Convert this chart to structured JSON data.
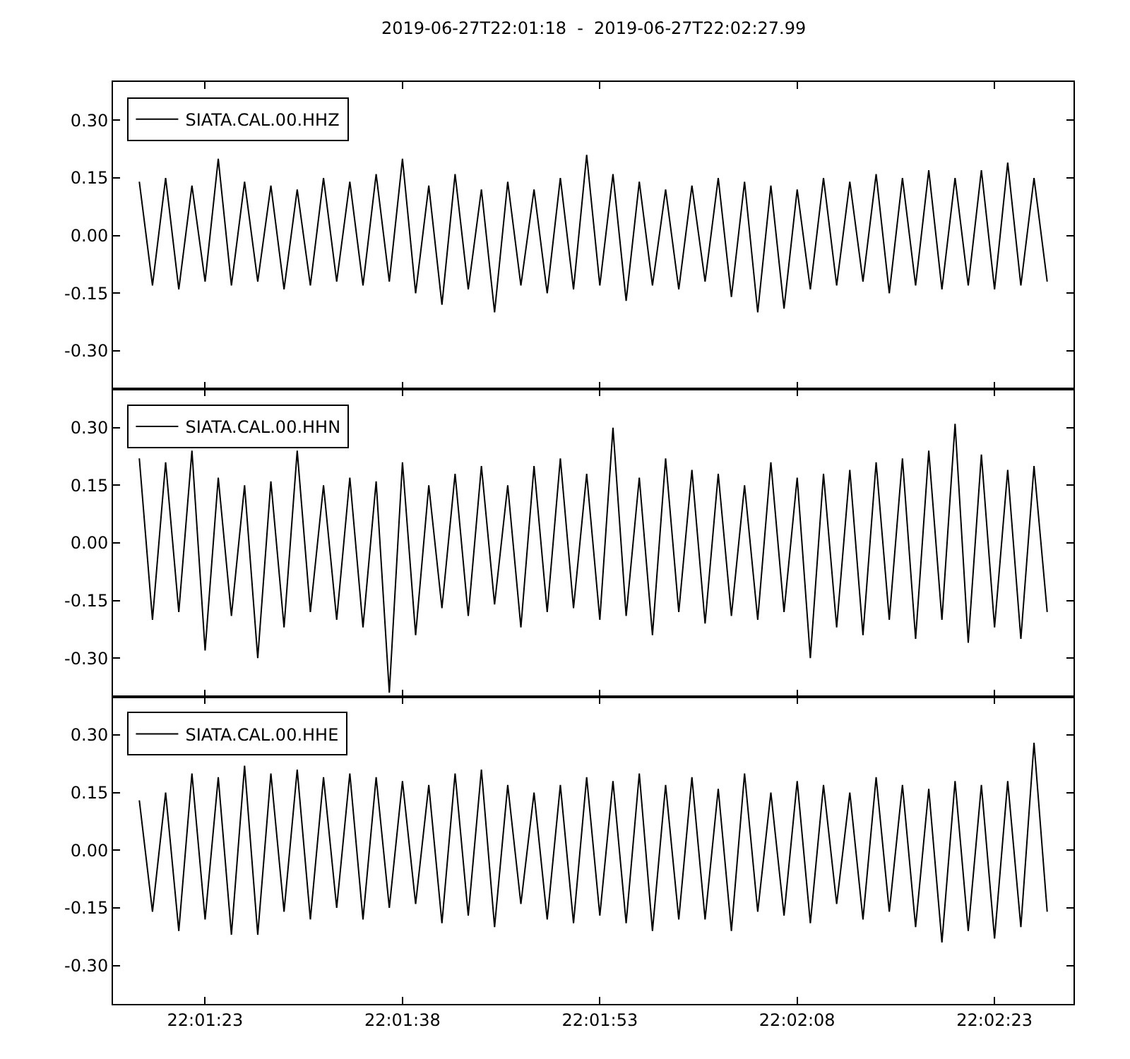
{
  "chart_data": [
    {
      "type": "line",
      "title": "2019-06-27T22:01:18  -  2019-06-27T22:02:27.99",
      "x": [
        "2019-06-27T22:01:18",
        "2019-06-27T22:01:19",
        "2019-06-27T22:01:20",
        "2019-06-27T22:01:21",
        "2019-06-27T22:01:22",
        "2019-06-27T22:01:23",
        "2019-06-27T22:01:24",
        "2019-06-27T22:01:25",
        "2019-06-27T22:01:26",
        "2019-06-27T22:01:27",
        "2019-06-27T22:01:28",
        "2019-06-27T22:01:29",
        "2019-06-27T22:01:30",
        "2019-06-27T22:01:31",
        "2019-06-27T22:01:32",
        "2019-06-27T22:01:33",
        "2019-06-27T22:01:34",
        "2019-06-27T22:01:35",
        "2019-06-27T22:01:36",
        "2019-06-27T22:01:37",
        "2019-06-27T22:01:38",
        "2019-06-27T22:01:39",
        "2019-06-27T22:01:40",
        "2019-06-27T22:01:41",
        "2019-06-27T22:01:42",
        "2019-06-27T22:01:43",
        "2019-06-27T22:01:44",
        "2019-06-27T22:01:45",
        "2019-06-27T22:01:46",
        "2019-06-27T22:01:47",
        "2019-06-27T22:01:48",
        "2019-06-27T22:01:49",
        "2019-06-27T22:01:50",
        "2019-06-27T22:01:51",
        "2019-06-27T22:01:52",
        "2019-06-27T22:01:53",
        "2019-06-27T22:01:54",
        "2019-06-27T22:01:55",
        "2019-06-27T22:01:56",
        "2019-06-27T22:01:57",
        "2019-06-27T22:01:58",
        "2019-06-27T22:01:59",
        "2019-06-27T22:02:00",
        "2019-06-27T22:02:01",
        "2019-06-27T22:02:02",
        "2019-06-27T22:02:03",
        "2019-06-27T22:02:04",
        "2019-06-27T22:02:05",
        "2019-06-27T22:02:06",
        "2019-06-27T22:02:07",
        "2019-06-27T22:02:08",
        "2019-06-27T22:02:09",
        "2019-06-27T22:02:10",
        "2019-06-27T22:02:11",
        "2019-06-27T22:02:12",
        "2019-06-27T22:02:13",
        "2019-06-27T22:02:14",
        "2019-06-27T22:02:15",
        "2019-06-27T22:02:16",
        "2019-06-27T22:02:17",
        "2019-06-27T22:02:18",
        "2019-06-27T22:02:19",
        "2019-06-27T22:02:20",
        "2019-06-27T22:02:21",
        "2019-06-27T22:02:22",
        "2019-06-27T22:02:23",
        "2019-06-27T22:02:24",
        "2019-06-27T22:02:25",
        "2019-06-27T22:02:26",
        "2019-06-27T22:02:27"
      ],
      "series": [
        {
          "name": "SIATA.CAL.00.HHZ",
          "color": "#000000",
          "values": [
            0.14,
            -0.13,
            0.15,
            -0.14,
            0.13,
            -0.12,
            0.2,
            -0.13,
            0.14,
            -0.12,
            0.13,
            -0.14,
            0.12,
            -0.13,
            0.15,
            -0.12,
            0.14,
            -0.13,
            0.16,
            -0.12,
            0.2,
            -0.15,
            0.13,
            -0.18,
            0.16,
            -0.14,
            0.12,
            -0.2,
            0.14,
            -0.13,
            0.12,
            -0.15,
            0.15,
            -0.14,
            0.21,
            -0.13,
            0.16,
            -0.17,
            0.14,
            -0.13,
            0.12,
            -0.14,
            0.13,
            -0.12,
            0.15,
            -0.16,
            0.14,
            -0.2,
            0.13,
            -0.19,
            0.12,
            -0.14,
            0.15,
            -0.13,
            0.14,
            -0.12,
            0.16,
            -0.15,
            0.15,
            -0.13,
            0.17,
            -0.14,
            0.15,
            -0.13,
            0.17,
            -0.14,
            0.19,
            -0.13,
            0.15,
            -0.12
          ]
        }
      ],
      "xlim": [
        "2019-06-27T22:01:16",
        "2019-06-27T22:02:29"
      ],
      "xticks": [
        {
          "value": "2019-06-27T22:01:23",
          "label": null
        },
        {
          "value": "2019-06-27T22:01:38",
          "label": null
        },
        {
          "value": "2019-06-27T22:01:53",
          "label": null
        },
        {
          "value": "2019-06-27T22:02:08",
          "label": null
        },
        {
          "value": "2019-06-27T22:02:23",
          "label": null
        }
      ],
      "ylim": [
        -0.4,
        0.4
      ],
      "yticks": [
        {
          "value": -0.3,
          "label": "-0.30"
        },
        {
          "value": -0.15,
          "label": "-0.15"
        },
        {
          "value": 0,
          "label": "0.00"
        },
        {
          "value": 0.15,
          "label": "0.15"
        },
        {
          "value": 0.3,
          "label": "0.30"
        }
      ],
      "tick_labels": "y",
      "legend": "top left",
      "marker": "none",
      "line_style": "solid"
    },
    {
      "type": "line",
      "x": [
        "2019-06-27T22:01:18",
        "2019-06-27T22:01:19",
        "2019-06-27T22:01:20",
        "2019-06-27T22:01:21",
        "2019-06-27T22:01:22",
        "2019-06-27T22:01:23",
        "2019-06-27T22:01:24",
        "2019-06-27T22:01:25",
        "2019-06-27T22:01:26",
        "2019-06-27T22:01:27",
        "2019-06-27T22:01:28",
        "2019-06-27T22:01:29",
        "2019-06-27T22:01:30",
        "2019-06-27T22:01:31",
        "2019-06-27T22:01:32",
        "2019-06-27T22:01:33",
        "2019-06-27T22:01:34",
        "2019-06-27T22:01:35",
        "2019-06-27T22:01:36",
        "2019-06-27T22:01:37",
        "2019-06-27T22:01:38",
        "2019-06-27T22:01:39",
        "2019-06-27T22:01:40",
        "2019-06-27T22:01:41",
        "2019-06-27T22:01:42",
        "2019-06-27T22:01:43",
        "2019-06-27T22:01:44",
        "2019-06-27T22:01:45",
        "2019-06-27T22:01:46",
        "2019-06-27T22:01:47",
        "2019-06-27T22:01:48",
        "2019-06-27T22:01:49",
        "2019-06-27T22:01:50",
        "2019-06-27T22:01:51",
        "2019-06-27T22:01:52",
        "2019-06-27T22:01:53",
        "2019-06-27T22:01:54",
        "2019-06-27T22:01:55",
        "2019-06-27T22:01:56",
        "2019-06-27T22:01:57",
        "2019-06-27T22:01:58",
        "2019-06-27T22:01:59",
        "2019-06-27T22:02:00",
        "2019-06-27T22:02:01",
        "2019-06-27T22:02:02",
        "2019-06-27T22:02:03",
        "2019-06-27T22:02:04",
        "2019-06-27T22:02:05",
        "2019-06-27T22:02:06",
        "2019-06-27T22:02:07",
        "2019-06-27T22:02:08",
        "2019-06-27T22:02:09",
        "2019-06-27T22:02:10",
        "2019-06-27T22:02:11",
        "2019-06-27T22:02:12",
        "2019-06-27T22:02:13",
        "2019-06-27T22:02:14",
        "2019-06-27T22:02:15",
        "2019-06-27T22:02:16",
        "2019-06-27T22:02:17",
        "2019-06-27T22:02:18",
        "2019-06-27T22:02:19",
        "2019-06-27T22:02:20",
        "2019-06-27T22:02:21",
        "2019-06-27T22:02:22",
        "2019-06-27T22:02:23",
        "2019-06-27T22:02:24",
        "2019-06-27T22:02:25",
        "2019-06-27T22:02:26",
        "2019-06-27T22:02:27"
      ],
      "series": [
        {
          "name": "SIATA.CAL.00.HHN",
          "color": "#000000",
          "values": [
            0.22,
            -0.2,
            0.21,
            -0.18,
            0.24,
            -0.28,
            0.17,
            -0.19,
            0.15,
            -0.3,
            0.16,
            -0.22,
            0.24,
            -0.18,
            0.15,
            -0.2,
            0.17,
            -0.22,
            0.16,
            -0.39,
            0.21,
            -0.24,
            0.15,
            -0.17,
            0.18,
            -0.19,
            0.2,
            -0.16,
            0.15,
            -0.22,
            0.2,
            -0.18,
            0.22,
            -0.17,
            0.18,
            -0.2,
            0.3,
            -0.19,
            0.17,
            -0.24,
            0.22,
            -0.18,
            0.19,
            -0.21,
            0.18,
            -0.19,
            0.15,
            -0.2,
            0.21,
            -0.18,
            0.17,
            -0.3,
            0.18,
            -0.22,
            0.19,
            -0.24,
            0.21,
            -0.2,
            0.22,
            -0.25,
            0.24,
            -0.2,
            0.31,
            -0.26,
            0.23,
            -0.22,
            0.19,
            -0.25,
            0.2,
            -0.18
          ]
        }
      ],
      "xlim": [
        "2019-06-27T22:01:16",
        "2019-06-27T22:02:29"
      ],
      "xticks": [
        {
          "value": "2019-06-27T22:01:23",
          "label": null
        },
        {
          "value": "2019-06-27T22:01:38",
          "label": null
        },
        {
          "value": "2019-06-27T22:01:53",
          "label": null
        },
        {
          "value": "2019-06-27T22:02:08",
          "label": null
        },
        {
          "value": "2019-06-27T22:02:23",
          "label": null
        }
      ],
      "ylim": [
        -0.4,
        0.4
      ],
      "yticks": [
        {
          "value": -0.3,
          "label": "-0.30"
        },
        {
          "value": -0.15,
          "label": "-0.15"
        },
        {
          "value": 0,
          "label": "0.00"
        },
        {
          "value": 0.15,
          "label": "0.15"
        },
        {
          "value": 0.3,
          "label": "0.30"
        }
      ],
      "tick_labels": "y",
      "legend": "top left",
      "marker": "none",
      "line_style": "solid"
    },
    {
      "type": "line",
      "x": [
        "2019-06-27T22:01:18",
        "2019-06-27T22:01:19",
        "2019-06-27T22:01:20",
        "2019-06-27T22:01:21",
        "2019-06-27T22:01:22",
        "2019-06-27T22:01:23",
        "2019-06-27T22:01:24",
        "2019-06-27T22:01:25",
        "2019-06-27T22:01:26",
        "2019-06-27T22:01:27",
        "2019-06-27T22:01:28",
        "2019-06-27T22:01:29",
        "2019-06-27T22:01:30",
        "2019-06-27T22:01:31",
        "2019-06-27T22:01:32",
        "2019-06-27T22:01:33",
        "2019-06-27T22:01:34",
        "2019-06-27T22:01:35",
        "2019-06-27T22:01:36",
        "2019-06-27T22:01:37",
        "2019-06-27T22:01:38",
        "2019-06-27T22:01:39",
        "2019-06-27T22:01:40",
        "2019-06-27T22:01:41",
        "2019-06-27T22:01:42",
        "2019-06-27T22:01:43",
        "2019-06-27T22:01:44",
        "2019-06-27T22:01:45",
        "2019-06-27T22:01:46",
        "2019-06-27T22:01:47",
        "2019-06-27T22:01:48",
        "2019-06-27T22:01:49",
        "2019-06-27T22:01:50",
        "2019-06-27T22:01:51",
        "2019-06-27T22:01:52",
        "2019-06-27T22:01:53",
        "2019-06-27T22:01:54",
        "2019-06-27T22:01:55",
        "2019-06-27T22:01:56",
        "2019-06-27T22:01:57",
        "2019-06-27T22:01:58",
        "2019-06-27T22:01:59",
        "2019-06-27T22:02:00",
        "2019-06-27T22:02:01",
        "2019-06-27T22:02:02",
        "2019-06-27T22:02:03",
        "2019-06-27T22:02:04",
        "2019-06-27T22:02:05",
        "2019-06-27T22:02:06",
        "2019-06-27T22:02:07",
        "2019-06-27T22:02:08",
        "2019-06-27T22:02:09",
        "2019-06-27T22:02:10",
        "2019-06-27T22:02:11",
        "2019-06-27T22:02:12",
        "2019-06-27T22:02:13",
        "2019-06-27T22:02:14",
        "2019-06-27T22:02:15",
        "2019-06-27T22:02:16",
        "2019-06-27T22:02:17",
        "2019-06-27T22:02:18",
        "2019-06-27T22:02:19",
        "2019-06-27T22:02:20",
        "2019-06-27T22:02:21",
        "2019-06-27T22:02:22",
        "2019-06-27T22:02:23",
        "2019-06-27T22:02:24",
        "2019-06-27T22:02:25",
        "2019-06-27T22:02:26",
        "2019-06-27T22:02:27"
      ],
      "series": [
        {
          "name": "SIATA.CAL.00.HHE",
          "color": "#000000",
          "values": [
            0.13,
            -0.16,
            0.15,
            -0.21,
            0.2,
            -0.18,
            0.19,
            -0.22,
            0.22,
            -0.22,
            0.2,
            -0.16,
            0.21,
            -0.18,
            0.19,
            -0.15,
            0.2,
            -0.18,
            0.19,
            -0.15,
            0.18,
            -0.14,
            0.17,
            -0.19,
            0.2,
            -0.17,
            0.21,
            -0.2,
            0.17,
            -0.14,
            0.15,
            -0.18,
            0.17,
            -0.19,
            0.19,
            -0.17,
            0.18,
            -0.19,
            0.2,
            -0.21,
            0.17,
            -0.18,
            0.19,
            -0.18,
            0.16,
            -0.21,
            0.2,
            -0.16,
            0.15,
            -0.17,
            0.18,
            -0.19,
            0.17,
            -0.14,
            0.15,
            -0.18,
            0.19,
            -0.16,
            0.17,
            -0.2,
            0.16,
            -0.24,
            0.18,
            -0.21,
            0.17,
            -0.23,
            0.18,
            -0.2,
            0.28,
            -0.16
          ]
        }
      ],
      "xlim": [
        "2019-06-27T22:01:16",
        "2019-06-27T22:02:29"
      ],
      "xticks": [
        {
          "value": "2019-06-27T22:01:23",
          "label": "22:01:23"
        },
        {
          "value": "2019-06-27T22:01:38",
          "label": "22:01:38"
        },
        {
          "value": "2019-06-27T22:01:53",
          "label": "22:01:53"
        },
        {
          "value": "2019-06-27T22:02:08",
          "label": "22:02:08"
        },
        {
          "value": "2019-06-27T22:02:23",
          "label": "22:02:23"
        }
      ],
      "ylim": [
        -0.4,
        0.4
      ],
      "yticks": [
        {
          "value": -0.3,
          "label": "-0.30"
        },
        {
          "value": -0.15,
          "label": "-0.15"
        },
        {
          "value": 0,
          "label": "0.00"
        },
        {
          "value": 0.15,
          "label": "0.15"
        },
        {
          "value": 0.3,
          "label": "0.30"
        }
      ],
      "legend": "top left",
      "marker": "none",
      "line_style": "solid"
    }
  ]
}
